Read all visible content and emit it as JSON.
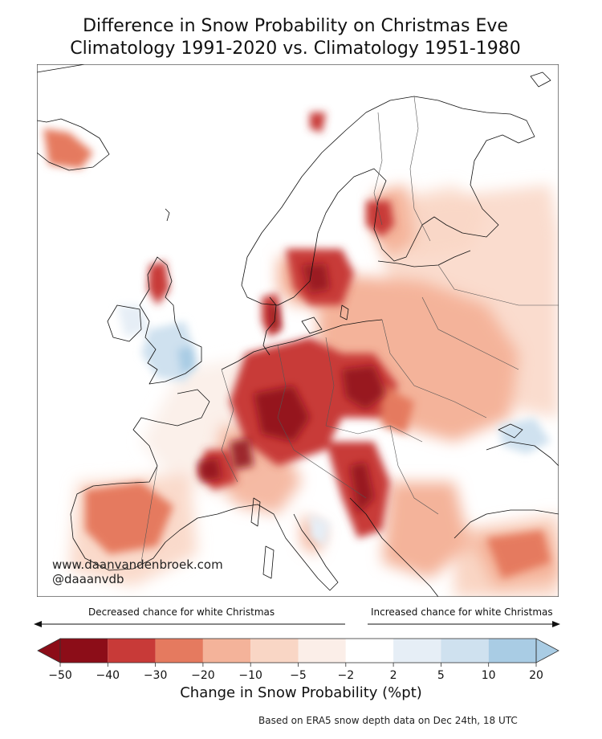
{
  "title_line1": "Difference in Snow Probability on Christmas Eve",
  "title_line2": "Climatology 1991-2020 vs. Climatology 1951-1980",
  "credit_site": "www.daanvandenbroek.com",
  "credit_handle": "@daaanvdb",
  "decreased_label": "Decreased chance for white Christmas",
  "increased_label": "Increased chance for white Christmas",
  "colorbar": {
    "title": "Change in Snow Probability (%pt)",
    "ticks": [
      "−50",
      "−40",
      "−30",
      "−20",
      "−10",
      "−5",
      "−2",
      "2",
      "5",
      "10",
      "20"
    ],
    "colors": [
      "#8c0d18",
      "#c83a38",
      "#e57a5f",
      "#f4b39a",
      "#f9d6c5",
      "#fbeee8",
      "#ffffff",
      "#e6eef6",
      "#cfe1ef",
      "#a9cce4"
    ]
  },
  "source": "Based on ERA5 snow depth data on Dec 24th, 18 UTC",
  "colors": {
    "dark_red": "#8c0d18",
    "red": "#c83a38",
    "orange": "#e57a5f",
    "salmon": "#f4b39a",
    "pale": "#f9d6c5",
    "faint": "#fbeee8",
    "light_blue": "#cfe1ef",
    "blue": "#a9cce4"
  }
}
